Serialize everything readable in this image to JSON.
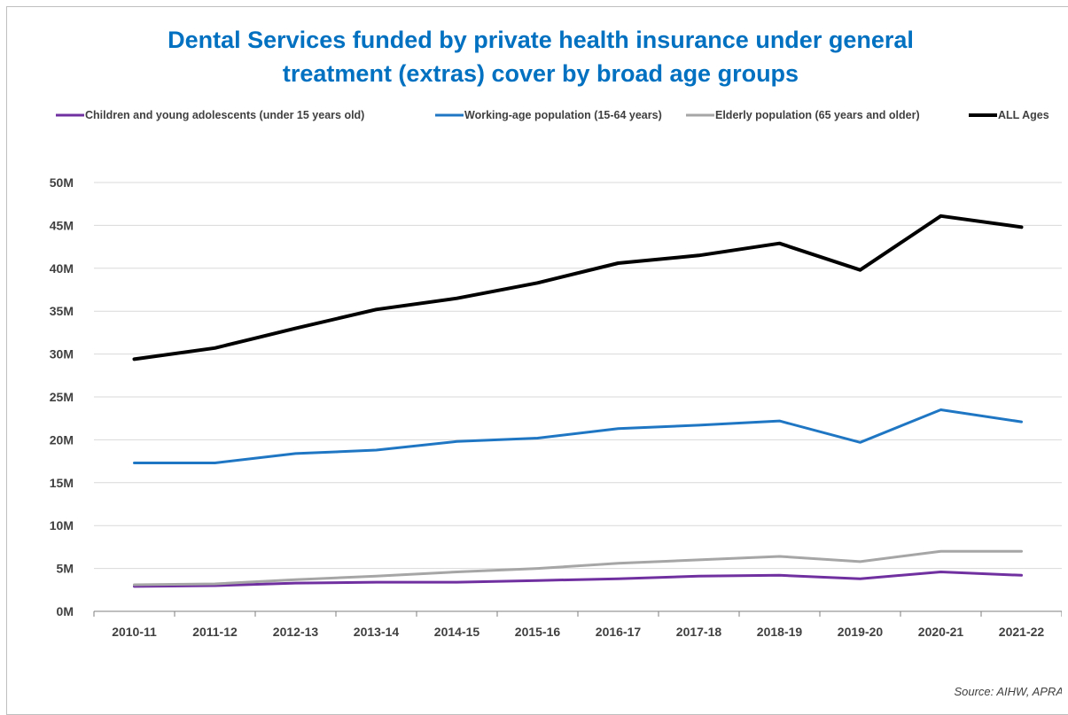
{
  "chart_data": {
    "type": "line",
    "title_lines": [
      "Dental Services funded by private health insurance under general",
      "treatment (extras) cover by broad age groups"
    ],
    "xlabel": "",
    "ylabel": "",
    "categories": [
      "2010-11",
      "2011-12",
      "2012-13",
      "2013-14",
      "2014-15",
      "2015-16",
      "2016-17",
      "2017-18",
      "2018-19",
      "2019-20",
      "2020-21",
      "2021-22"
    ],
    "ylim": [
      0,
      50
    ],
    "yticks": [
      0,
      5,
      10,
      15,
      20,
      25,
      30,
      35,
      40,
      45,
      50
    ],
    "ytick_labels": [
      "0M",
      "5M",
      "10M",
      "15M",
      "20M",
      "25M",
      "30M",
      "35M",
      "40M",
      "45M",
      "50M"
    ],
    "unit": "M",
    "grid": true,
    "legend_position": "top",
    "series": [
      {
        "name": "Children and young adolescents (under 15 years old)",
        "color": "#7030a0",
        "values": [
          2.9,
          3.0,
          3.3,
          3.4,
          3.4,
          3.6,
          3.8,
          4.1,
          4.2,
          3.8,
          4.6,
          4.2
        ]
      },
      {
        "name": "Working-age population  (15-64 years)",
        "color": "#1f77c4",
        "values": [
          17.3,
          17.3,
          18.4,
          18.8,
          19.8,
          20.2,
          21.3,
          21.7,
          22.2,
          19.7,
          23.5,
          22.1
        ]
      },
      {
        "name": "Elderly population (65 years and older)",
        "color": "#a6a6a6",
        "values": [
          3.1,
          3.2,
          3.7,
          4.1,
          4.6,
          5.0,
          5.6,
          6.0,
          6.4,
          5.8,
          7.0,
          7.0
        ]
      },
      {
        "name": "ALL Ages",
        "color": "#000000",
        "values": [
          29.4,
          30.7,
          33.0,
          35.2,
          36.5,
          38.3,
          40.6,
          41.5,
          42.9,
          39.8,
          46.1,
          44.8
        ]
      }
    ],
    "source": "Source: AIHW, APRA"
  },
  "colors": {
    "title": "#0070c0",
    "gridline": "#d9d9d9",
    "axis": "#7f7f7f",
    "text": "#404040"
  }
}
